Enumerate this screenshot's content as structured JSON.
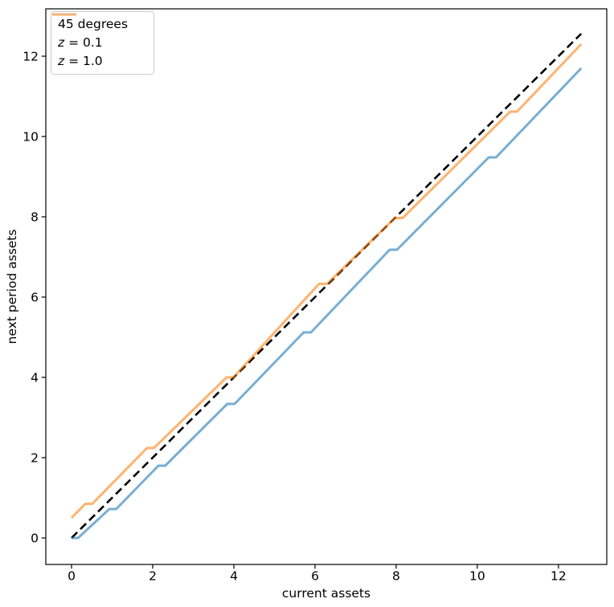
{
  "figure": {
    "background": "#ffffff",
    "legend": {
      "position": "upper left",
      "entries": [
        {
          "label": "45 degrees",
          "sample_color": "#000000",
          "sample_dash": "6 4"
        },
        {
          "symbol": "z",
          "rest": " = 0.1",
          "sample_color": "#78add2"
        },
        {
          "symbol": "z",
          "rest": " = 1.0",
          "sample_color": "#ffb26e"
        }
      ]
    }
  },
  "chart_data": {
    "type": "line",
    "xlabel": "current assets",
    "ylabel": "next period assets",
    "xlim": [
      -0.634,
      13.19
    ],
    "ylim": [
      -0.66,
      13.18
    ],
    "x_ticks": [
      0,
      2,
      4,
      6,
      8,
      10,
      12
    ],
    "y_ticks": [
      0,
      2,
      4,
      6,
      8,
      10,
      12
    ],
    "grid": false,
    "legend_position": "upper left",
    "series": [
      {
        "name": "45 degrees",
        "color": "#000000",
        "opacity": 1,
        "width": 2.6,
        "dash": "10 5.5",
        "points": [
          [
            0,
            0
          ],
          [
            12.56,
            12.56
          ]
        ]
      },
      {
        "name": "z = 0.1",
        "color": "#1f77b4",
        "opacity": 0.6,
        "width": 3,
        "points": [
          [
            0.0,
            0.0
          ],
          [
            0.16,
            0.0
          ],
          [
            0.93,
            0.72
          ],
          [
            1.1,
            0.72
          ],
          [
            2.14,
            1.8
          ],
          [
            2.31,
            1.8
          ],
          [
            3.84,
            3.34
          ],
          [
            4.02,
            3.34
          ],
          [
            5.72,
            5.12
          ],
          [
            5.9,
            5.12
          ],
          [
            7.84,
            7.18
          ],
          [
            8.02,
            7.18
          ],
          [
            10.28,
            9.48
          ],
          [
            10.46,
            9.48
          ],
          [
            12.56,
            11.7
          ]
        ]
      },
      {
        "name": "z = 1.0",
        "color": "#ff7f0e",
        "opacity": 0.6,
        "width": 3,
        "points": [
          [
            0.0,
            0.5
          ],
          [
            0.34,
            0.85
          ],
          [
            0.51,
            0.85
          ],
          [
            1.86,
            2.24
          ],
          [
            2.03,
            2.24
          ],
          [
            3.82,
            4.0
          ],
          [
            3.99,
            4.0
          ],
          [
            6.1,
            6.33
          ],
          [
            6.3,
            6.33
          ],
          [
            7.97,
            7.97
          ],
          [
            8.16,
            7.97
          ],
          [
            10.81,
            10.62
          ],
          [
            10.98,
            10.62
          ],
          [
            12.56,
            12.3
          ]
        ]
      }
    ]
  }
}
